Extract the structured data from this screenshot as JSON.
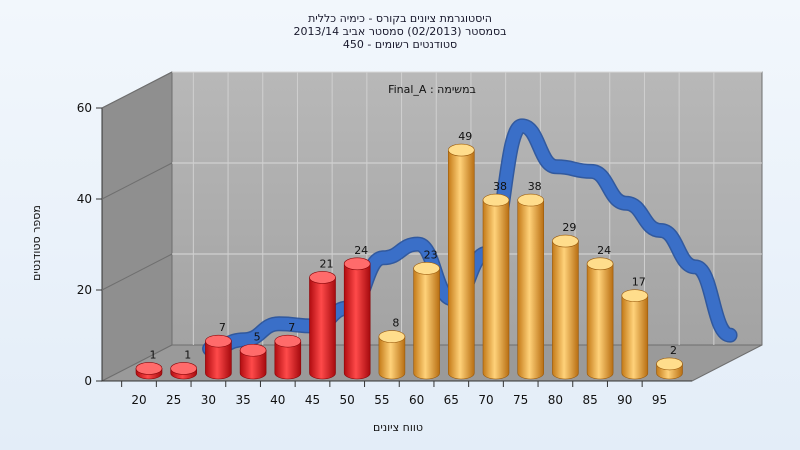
{
  "chart_data": {
    "type": "bar",
    "title_lines": [
      "היסטוגרמת ציונים בקורס - כימיה כללית",
      "בסמסטר  (02/2013)  סמסטר אביב 2013/14",
      "סטודנטים רשומים - 450"
    ],
    "plot_label": "Final_A : במשימה",
    "xlabel": "טווח ציונים",
    "ylabel": "מספר סטודנטים",
    "categories": [
      "20",
      "25",
      "30",
      "35",
      "40",
      "45",
      "50",
      "55",
      "60",
      "65",
      "70",
      "75",
      "80",
      "85",
      "90",
      "95"
    ],
    "values": [
      1,
      1,
      7,
      5,
      7,
      21,
      24,
      8,
      23,
      49,
      38,
      38,
      29,
      24,
      17,
      2
    ],
    "fail_threshold": 55,
    "colors": {
      "fail": "#e0141a",
      "pass": "#f0a830",
      "curve": "#3a6fc8",
      "wall": "#a9a9a9",
      "side_wall": "#909090"
    },
    "ylim": [
      0,
      60
    ],
    "yticks": [
      0,
      20,
      40,
      60
    ],
    "grid": true,
    "curve": [
      {
        "x": 27,
        "y": 4
      },
      {
        "x": 32,
        "y": 6
      },
      {
        "x": 37,
        "y": 9.5
      },
      {
        "x": 42,
        "y": 9
      },
      {
        "x": 47,
        "y": 13
      },
      {
        "x": 52,
        "y": 24
      },
      {
        "x": 57,
        "y": 27
      },
      {
        "x": 62,
        "y": 15
      },
      {
        "x": 67,
        "y": 25
      },
      {
        "x": 72,
        "y": 53
      },
      {
        "x": 77,
        "y": 44
      },
      {
        "x": 82,
        "y": 43
      },
      {
        "x": 87,
        "y": 36
      },
      {
        "x": 92,
        "y": 30
      },
      {
        "x": 97,
        "y": 22
      },
      {
        "x": 102,
        "y": 7
      }
    ]
  }
}
